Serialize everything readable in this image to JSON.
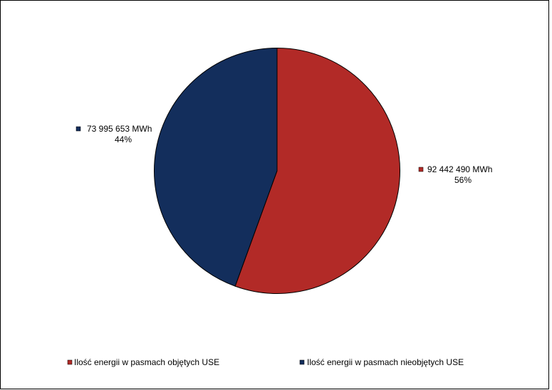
{
  "chart_data": {
    "type": "pie",
    "categories": [
      "Ilość energii w pasmach objętych USE",
      "Ilość energii w pasmach nieobjętych USE"
    ],
    "values": [
      92442490,
      73995653
    ],
    "value_labels": [
      "92 442 490 MWh",
      "73 995 653 MWh"
    ],
    "percent_labels": [
      "56%",
      "44%"
    ],
    "colors": [
      "#b22a27",
      "#132e5c"
    ],
    "legend": "bottom"
  }
}
